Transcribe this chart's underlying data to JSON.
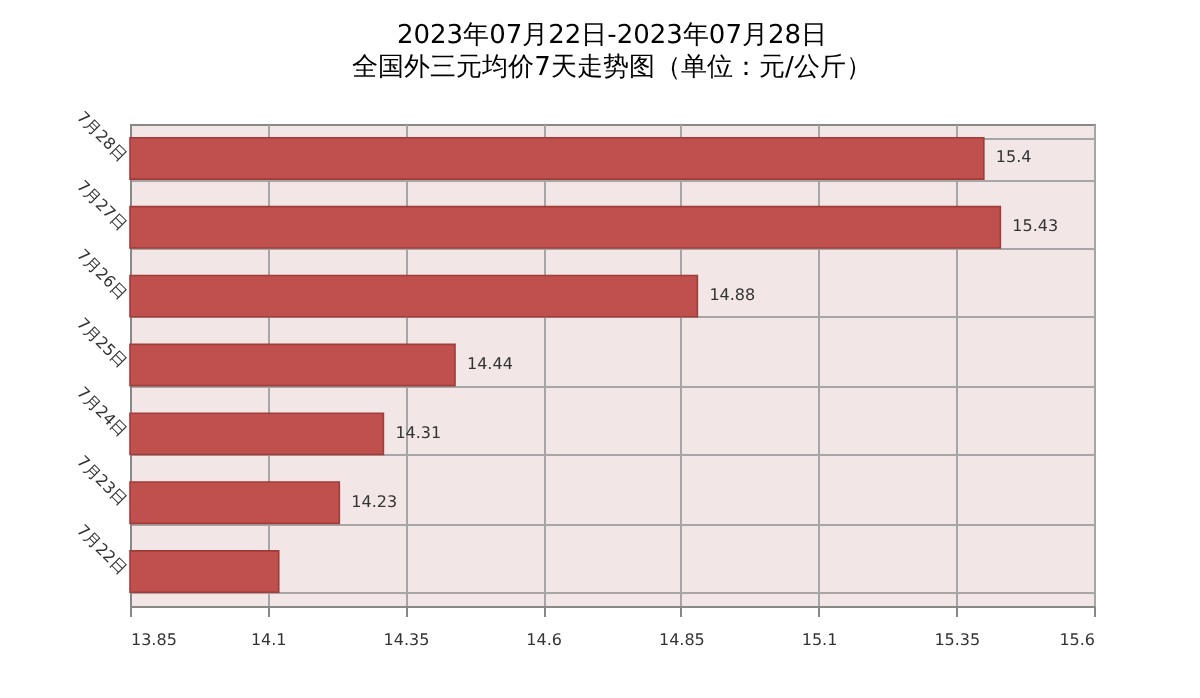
{
  "chart_data": {
    "type": "bar",
    "orientation": "horizontal",
    "title": "2023年07月22日-2023年07月28日",
    "subtitle": "全国外三元均价7天走势图（单位：元/公斤）",
    "categories": [
      "7月28日",
      "7月27日",
      "7月26日",
      "7月25日",
      "7月24日",
      "7月23日",
      "7月22日"
    ],
    "values": [
      15.4,
      15.43,
      14.88,
      14.44,
      14.31,
      14.23,
      14.12
    ],
    "value_labels": [
      "15.4",
      "15.43",
      "14.88",
      "14.44",
      "14.31",
      "14.23",
      null
    ],
    "color": "#c0504d",
    "xlim": [
      13.85,
      15.6
    ],
    "xticks": [
      13.85,
      14.1,
      14.35,
      14.6,
      14.85,
      15.1,
      15.35,
      15.6
    ],
    "grid": true
  }
}
